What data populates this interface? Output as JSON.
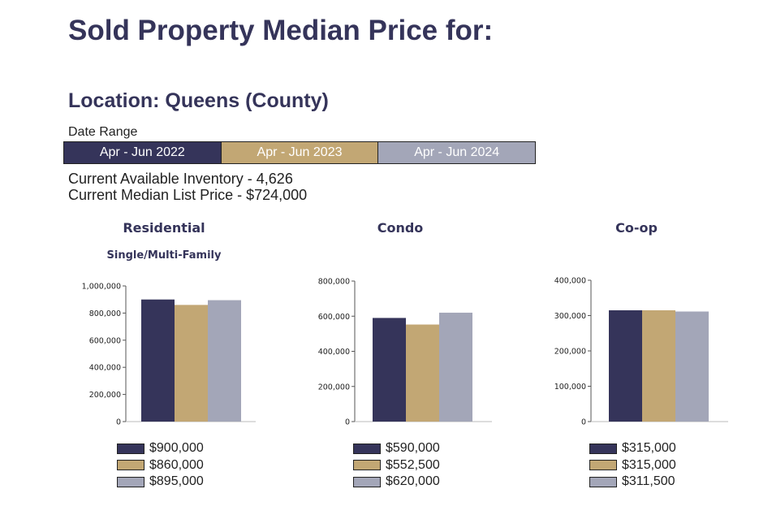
{
  "title": "Sold Property Median Price for:",
  "location": "Location: Queens (County)",
  "date_range": {
    "label": "Date Range",
    "periods": [
      {
        "label": "Apr - Jun 2022",
        "color": "#35345a"
      },
      {
        "label": "Apr - Jun 2023",
        "color": "#c2a774"
      },
      {
        "label": "Apr - Jun 2024",
        "color": "#a3a6b8"
      }
    ]
  },
  "stats": {
    "inventory": "Current Available Inventory - 4,626",
    "median_list": "Current Median List Price - $724,000"
  },
  "chart_data": [
    {
      "type": "bar",
      "title": "Residential",
      "subtitle": "Single/Multi-Family",
      "categories": [
        "Apr - Jun 2022",
        "Apr - Jun 2023",
        "Apr - Jun 2024"
      ],
      "values": [
        900000,
        860000,
        895000
      ],
      "value_labels": [
        "$900,000",
        "$860,000",
        "$895,000"
      ],
      "ylim": [
        0,
        1000000
      ],
      "yticks": [
        0,
        200000,
        400000,
        600000,
        800000,
        1000000
      ],
      "ytick_labels": [
        "0",
        "200,000",
        "400,000",
        "600,000",
        "800,000",
        "1,000,000"
      ],
      "grid": false,
      "legend_position": "bottom"
    },
    {
      "type": "bar",
      "title": "Condo",
      "categories": [
        "Apr - Jun 2022",
        "Apr - Jun 2023",
        "Apr - Jun 2024"
      ],
      "values": [
        590000,
        552500,
        620000
      ],
      "value_labels": [
        "$590,000",
        "$552,500",
        "$620,000"
      ],
      "ylim": [
        0,
        800000
      ],
      "yticks": [
        0,
        200000,
        400000,
        600000,
        800000
      ],
      "ytick_labels": [
        "0",
        "200,000",
        "400,000",
        "600,000",
        "800,000"
      ],
      "grid": false,
      "legend_position": "bottom"
    },
    {
      "type": "bar",
      "title": "Co-op",
      "categories": [
        "Apr - Jun 2022",
        "Apr - Jun 2023",
        "Apr - Jun 2024"
      ],
      "values": [
        315000,
        315000,
        311500
      ],
      "value_labels": [
        "$315,000",
        "$315,000",
        "$311,500"
      ],
      "ylim": [
        0,
        400000
      ],
      "yticks": [
        0,
        100000,
        200000,
        300000,
        400000
      ],
      "ytick_labels": [
        "0",
        "100,000",
        "200,000",
        "300,000",
        "400,000"
      ],
      "grid": false,
      "legend_position": "bottom"
    }
  ]
}
